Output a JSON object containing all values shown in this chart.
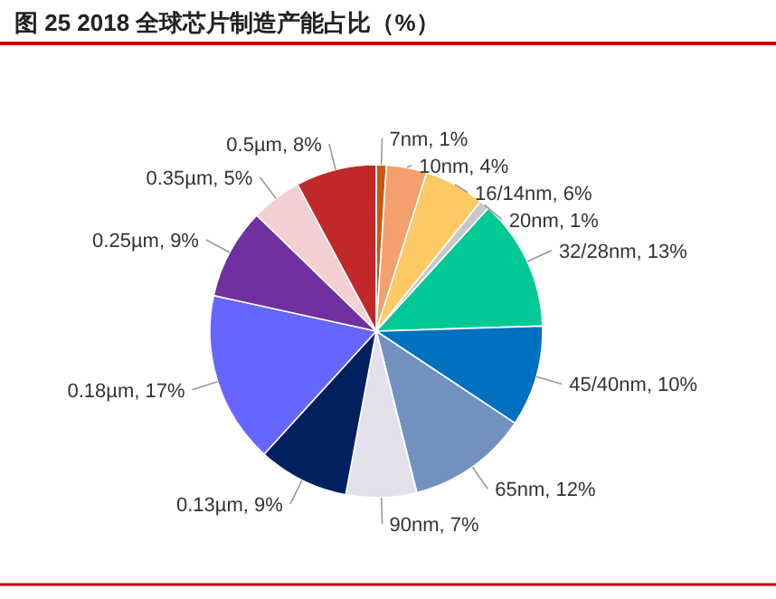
{
  "chart_data": {
    "type": "pie",
    "title": "图 25 2018 全球芯片制造产能占比（%）",
    "categories": [
      "7nm",
      "10nm",
      "16/14nm",
      "20nm",
      "32/28nm",
      "45/40nm",
      "65nm",
      "90nm",
      "0.13µm",
      "0.18µm",
      "0.25µm",
      "0.35µm",
      "0.5µm"
    ],
    "values": [
      1,
      4,
      6,
      1,
      13,
      10,
      12,
      7,
      9,
      17,
      9,
      5,
      8
    ],
    "value_labels": [
      "1%",
      "4%",
      "6%",
      "1%",
      "13%",
      "10%",
      "12%",
      "7%",
      "9%",
      "17%",
      "9%",
      "5%",
      "8%"
    ],
    "colors": [
      "#c55a11",
      "#f4a06e",
      "#ffc966",
      "#c8c8c8",
      "#00c996",
      "#0070c0",
      "#7391bf",
      "#e4e0ec",
      "#002060",
      "#6666ff",
      "#7030a0",
      "#f2cfd0",
      "#c0282a"
    ]
  }
}
